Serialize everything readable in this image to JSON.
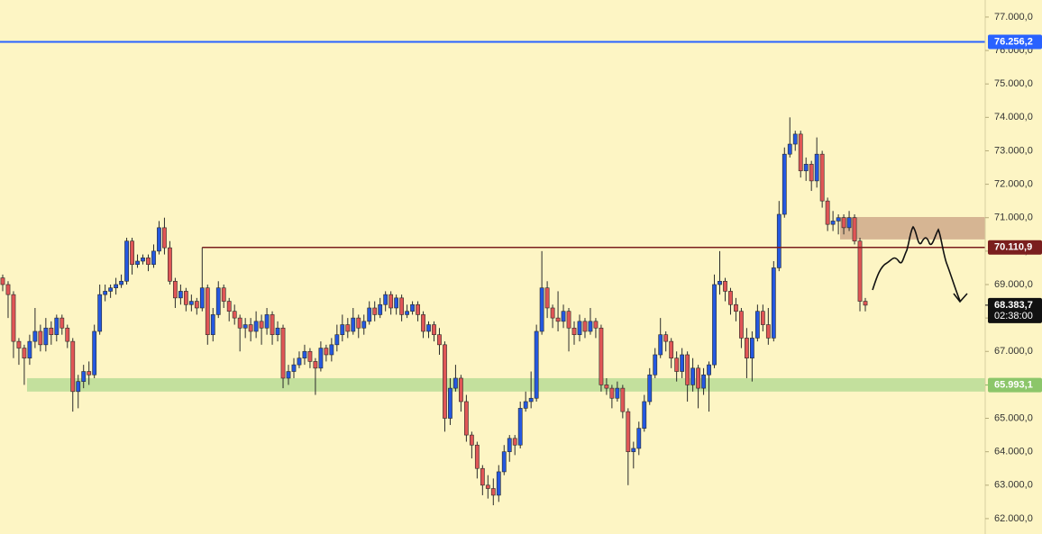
{
  "chart_data": {
    "type": "candlestick",
    "up_color": "#2458e0",
    "down_color": "#e05656",
    "wick_color": "#2a2a2a",
    "ylim": [
      61540,
      77510
    ],
    "yticks": [
      {
        "value": 62000,
        "label": "62.000,0"
      },
      {
        "value": 63000,
        "label": "63.000,0"
      },
      {
        "value": 64000,
        "label": "64.000,0"
      },
      {
        "value": 65000,
        "label": "65.000,0"
      },
      {
        "value": 66000,
        "label": "66.000,0"
      },
      {
        "value": 67000,
        "label": "67.000,0"
      },
      {
        "value": 68000,
        "label": "68.000,0"
      },
      {
        "value": 69000,
        "label": "69.000,0"
      },
      {
        "value": 70000,
        "label": "70.000,0"
      },
      {
        "value": 71000,
        "label": "71.000,0"
      },
      {
        "value": 72000,
        "label": "72.000,0"
      },
      {
        "value": 73000,
        "label": "73.000,0"
      },
      {
        "value": 74000,
        "label": "74.000,0"
      },
      {
        "value": 75000,
        "label": "75.000,0"
      },
      {
        "value": 76000,
        "label": "76.000,0"
      },
      {
        "value": 77000,
        "label": "77.000,0"
      }
    ],
    "price_lines": [
      {
        "value": 76256.2,
        "label": "76.256,2",
        "color": "#2962ff"
      },
      {
        "value": 70110.9,
        "label": "70.110,9",
        "color": "#7a1e1e"
      }
    ],
    "zones": [
      {
        "range": [
          65800,
          66200
        ],
        "color": "#b9dc96",
        "label_value": 65993.1,
        "label": "65.993,1",
        "label_color": "#8cc66a"
      },
      {
        "range": [
          70350,
          71020
        ],
        "color": "#cfa98b"
      }
    ],
    "last_price": {
      "value": 68383.7,
      "label": "68.383,7",
      "countdown": "02:38:00"
    },
    "candles": [
      [
        69200,
        69300,
        68800,
        69000
      ],
      [
        69000,
        69100,
        68000,
        68700
      ],
      [
        68700,
        68800,
        66800,
        67300
      ],
      [
        67300,
        67400,
        66600,
        67100
      ],
      [
        67100,
        67200,
        66000,
        66800
      ],
      [
        66800,
        67500,
        66600,
        67300
      ],
      [
        67300,
        68300,
        67100,
        67600
      ],
      [
        67600,
        67800,
        67000,
        67200
      ],
      [
        67200,
        68000,
        67000,
        67700
      ],
      [
        67700,
        67900,
        67200,
        67500
      ],
      [
        67500,
        68100,
        67300,
        68000
      ],
      [
        68000,
        68100,
        67500,
        67700
      ],
      [
        67700,
        67800,
        67100,
        67300
      ],
      [
        67300,
        67400,
        65200,
        65800
      ],
      [
        65800,
        66300,
        65300,
        66100
      ],
      [
        66100,
        66600,
        65900,
        66400
      ],
      [
        66400,
        66700,
        66000,
        66300
      ],
      [
        66300,
        67800,
        66200,
        67600
      ],
      [
        67600,
        69000,
        67500,
        68700
      ],
      [
        68700,
        69000,
        68500,
        68800
      ],
      [
        68800,
        69000,
        68600,
        68900
      ],
      [
        68900,
        69200,
        68700,
        69000
      ],
      [
        69000,
        69300,
        68900,
        69100
      ],
      [
        69100,
        70400,
        69000,
        70300
      ],
      [
        70300,
        70400,
        69300,
        69600
      ],
      [
        69600,
        69900,
        69500,
        69700
      ],
      [
        69700,
        69900,
        69600,
        69800
      ],
      [
        69800,
        69900,
        69400,
        69600
      ],
      [
        69600,
        70200,
        69500,
        70000
      ],
      [
        70000,
        70900,
        69900,
        70700
      ],
      [
        70700,
        71000,
        69900,
        70100
      ],
      [
        70100,
        70300,
        69000,
        69100
      ],
      [
        69100,
        69200,
        68300,
        68600
      ],
      [
        68600,
        69000,
        68400,
        68800
      ],
      [
        68800,
        68900,
        68200,
        68400
      ],
      [
        68400,
        68700,
        68200,
        68500
      ],
      [
        68500,
        68600,
        68100,
        68300
      ],
      [
        68300,
        70110,
        68200,
        68900
      ],
      [
        68900,
        69000,
        67200,
        67500
      ],
      [
        67500,
        68300,
        67300,
        68100
      ],
      [
        68100,
        69100,
        68000,
        68900
      ],
      [
        68900,
        69000,
        68300,
        68500
      ],
      [
        68500,
        68600,
        67900,
        68200
      ],
      [
        68200,
        68400,
        67800,
        68000
      ],
      [
        68000,
        68100,
        67000,
        67700
      ],
      [
        67700,
        68000,
        67400,
        67800
      ],
      [
        67800,
        68000,
        67300,
        67600
      ],
      [
        67600,
        68200,
        67400,
        67900
      ],
      [
        67900,
        68100,
        67200,
        67700
      ],
      [
        67700,
        68300,
        67500,
        68100
      ],
      [
        68100,
        68200,
        67200,
        67500
      ],
      [
        67500,
        67900,
        67300,
        67700
      ],
      [
        67700,
        67800,
        65900,
        66200
      ],
      [
        66200,
        66600,
        66000,
        66400
      ],
      [
        66400,
        66800,
        66200,
        66600
      ],
      [
        66600,
        67000,
        66500,
        66800
      ],
      [
        66800,
        67200,
        66600,
        67000
      ],
      [
        67000,
        67100,
        66500,
        66700
      ],
      [
        66700,
        66800,
        65700,
        66500
      ],
      [
        66500,
        67300,
        66400,
        67100
      ],
      [
        67100,
        67200,
        66700,
        66900
      ],
      [
        66900,
        67400,
        66700,
        67200
      ],
      [
        67200,
        67800,
        67000,
        67500
      ],
      [
        67500,
        68100,
        67300,
        67800
      ],
      [
        67800,
        68000,
        67400,
        67600
      ],
      [
        67600,
        68300,
        67500,
        68000
      ],
      [
        68000,
        68100,
        67400,
        67700
      ],
      [
        67700,
        68100,
        67500,
        67900
      ],
      [
        67900,
        68500,
        67800,
        68300
      ],
      [
        68300,
        68500,
        67900,
        68100
      ],
      [
        68100,
        68600,
        68000,
        68400
      ],
      [
        68400,
        68800,
        68200,
        68700
      ],
      [
        68700,
        68800,
        68100,
        68300
      ],
      [
        68300,
        68700,
        68100,
        68600
      ],
      [
        68600,
        68700,
        67900,
        68100
      ],
      [
        68100,
        68400,
        68000,
        68200
      ],
      [
        68200,
        68500,
        68100,
        68400
      ],
      [
        68400,
        68500,
        67900,
        68100
      ],
      [
        68100,
        68200,
        67400,
        67600
      ],
      [
        67600,
        67900,
        67400,
        67800
      ],
      [
        67800,
        67900,
        67300,
        67500
      ],
      [
        67500,
        67700,
        66900,
        67200
      ],
      [
        67200,
        67300,
        64600,
        65000
      ],
      [
        65000,
        66200,
        64800,
        65900
      ],
      [
        65900,
        66600,
        65800,
        66200
      ],
      [
        66200,
        66300,
        65200,
        65500
      ],
      [
        65500,
        65700,
        64300,
        64500
      ],
      [
        64500,
        64600,
        63800,
        64200
      ],
      [
        64200,
        64300,
        63200,
        63500
      ],
      [
        63500,
        63600,
        62700,
        63000
      ],
      [
        63000,
        63300,
        62600,
        62900
      ],
      [
        62900,
        63200,
        62400,
        62700
      ],
      [
        62700,
        63600,
        62500,
        63400
      ],
      [
        63400,
        64200,
        63300,
        64000
      ],
      [
        64000,
        64500,
        63700,
        64400
      ],
      [
        64400,
        64500,
        63900,
        64200
      ],
      [
        64200,
        65500,
        64100,
        65300
      ],
      [
        65300,
        65800,
        65200,
        65500
      ],
      [
        65500,
        66400,
        65300,
        65600
      ],
      [
        65600,
        67800,
        65500,
        67600
      ],
      [
        67600,
        70000,
        67500,
        68900
      ],
      [
        68900,
        69100,
        68000,
        68300
      ],
      [
        68300,
        68400,
        67700,
        68000
      ],
      [
        68000,
        68800,
        67600,
        67900
      ],
      [
        67900,
        68400,
        67700,
        68200
      ],
      [
        68200,
        68300,
        67000,
        67700
      ],
      [
        67700,
        67900,
        67200,
        67500
      ],
      [
        67500,
        68100,
        67300,
        67900
      ],
      [
        67900,
        68000,
        67400,
        67600
      ],
      [
        67600,
        68300,
        67500,
        67900
      ],
      [
        67900,
        68000,
        67400,
        67700
      ],
      [
        67700,
        67800,
        65800,
        66000
      ],
      [
        66000,
        66200,
        65700,
        65900
      ],
      [
        65900,
        66000,
        65300,
        65600
      ],
      [
        65600,
        66100,
        65500,
        65900
      ],
      [
        65900,
        66000,
        65000,
        65200
      ],
      [
        65200,
        65300,
        63000,
        64000
      ],
      [
        64000,
        64300,
        63500,
        64100
      ],
      [
        64100,
        64900,
        63900,
        64700
      ],
      [
        64700,
        65700,
        64600,
        65500
      ],
      [
        65500,
        66500,
        65400,
        66300
      ],
      [
        66300,
        67100,
        66200,
        66900
      ],
      [
        66900,
        68000,
        66800,
        67500
      ],
      [
        67500,
        67600,
        67000,
        67300
      ],
      [
        67300,
        67400,
        66500,
        66800
      ],
      [
        66800,
        67000,
        66100,
        66400
      ],
      [
        66400,
        67100,
        66200,
        66900
      ],
      [
        66900,
        67000,
        65500,
        66000
      ],
      [
        66000,
        66800,
        65800,
        66500
      ],
      [
        66500,
        66600,
        65300,
        65900
      ],
      [
        65900,
        66500,
        65700,
        66300
      ],
      [
        66300,
        66700,
        65200,
        66600
      ],
      [
        66600,
        69300,
        66500,
        69000
      ],
      [
        69000,
        70000,
        68700,
        69100
      ],
      [
        69100,
        69200,
        68500,
        68800
      ],
      [
        68800,
        68900,
        68100,
        68400
      ],
      [
        68400,
        68600,
        67900,
        68200
      ],
      [
        68200,
        68300,
        67100,
        67400
      ],
      [
        67400,
        67700,
        66200,
        66800
      ],
      [
        66800,
        67600,
        66100,
        67400
      ],
      [
        67400,
        68400,
        67300,
        68200
      ],
      [
        68200,
        68400,
        67600,
        67800
      ],
      [
        67800,
        68300,
        67200,
        67400
      ],
      [
        67400,
        69700,
        67300,
        69500
      ],
      [
        69500,
        71500,
        69400,
        71100
      ],
      [
        71100,
        73100,
        71000,
        72900
      ],
      [
        72900,
        74000,
        72800,
        73200
      ],
      [
        73200,
        73600,
        73000,
        73500
      ],
      [
        73500,
        73600,
        72200,
        72400
      ],
      [
        72400,
        72800,
        72100,
        72600
      ],
      [
        72600,
        72700,
        71800,
        72100
      ],
      [
        72100,
        73400,
        71900,
        72900
      ],
      [
        72900,
        73000,
        71300,
        71500
      ],
      [
        71500,
        71600,
        70600,
        70800
      ],
      [
        70800,
        71200,
        70600,
        70900
      ],
      [
        70900,
        71100,
        70500,
        71000
      ],
      [
        71000,
        71100,
        70500,
        70700
      ],
      [
        70700,
        71200,
        70600,
        71000
      ],
      [
        71000,
        71100,
        70200,
        70300
      ],
      [
        70300,
        70400,
        68200,
        68500
      ],
      [
        68500,
        68600,
        68200,
        68383.7
      ]
    ]
  }
}
